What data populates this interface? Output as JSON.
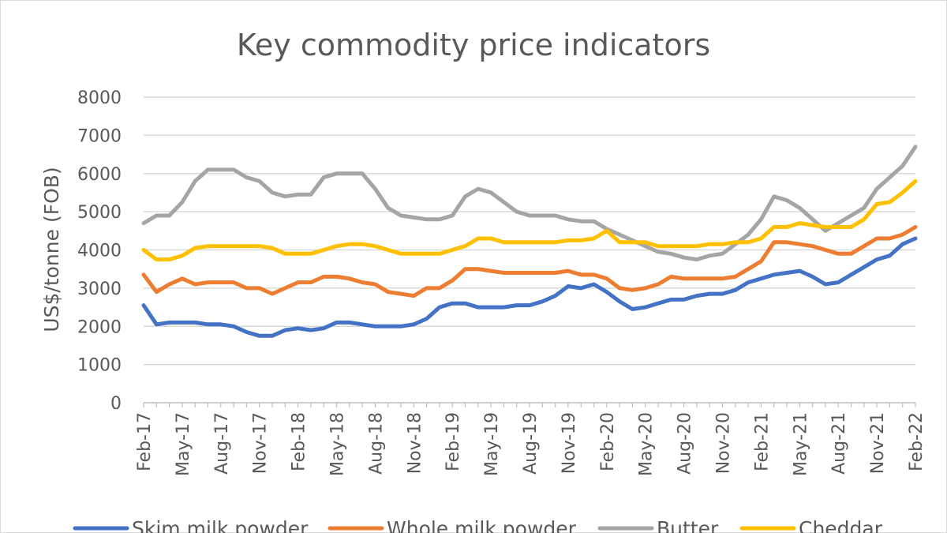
{
  "chart_data": {
    "type": "line",
    "title": "Key commodity price indicators",
    "ylabel": "US$/tonne (FOB)",
    "ylim": [
      0,
      8000
    ],
    "yticks": [
      0,
      1000,
      2000,
      3000,
      4000,
      5000,
      6000,
      7000,
      8000
    ],
    "grid": true,
    "legend_position": "bottom",
    "x": [
      "Feb-17",
      "Mar-17",
      "Apr-17",
      "May-17",
      "Jun-17",
      "Jul-17",
      "Aug-17",
      "Sep-17",
      "Oct-17",
      "Nov-17",
      "Dec-17",
      "Jan-18",
      "Feb-18",
      "Mar-18",
      "Apr-18",
      "May-18",
      "Jun-18",
      "Jul-18",
      "Aug-18",
      "Sep-18",
      "Oct-18",
      "Nov-18",
      "Dec-18",
      "Jan-19",
      "Feb-19",
      "Mar-19",
      "Apr-19",
      "May-19",
      "Jun-19",
      "Jul-19",
      "Aug-19",
      "Sep-19",
      "Oct-19",
      "Nov-19",
      "Dec-19",
      "Jan-20",
      "Feb-20",
      "Mar-20",
      "Apr-20",
      "May-20",
      "Jun-20",
      "Jul-20",
      "Aug-20",
      "Sep-20",
      "Oct-20",
      "Nov-20",
      "Dec-20",
      "Jan-21",
      "Feb-21",
      "Mar-21",
      "Apr-21",
      "May-21",
      "Jun-21",
      "Jul-21",
      "Aug-21",
      "Sep-21",
      "Oct-21",
      "Nov-21",
      "Dec-21",
      "Jan-22",
      "Feb-22"
    ],
    "x_tick_labels": [
      "Feb-17",
      "May-17",
      "Aug-17",
      "Nov-17",
      "Feb-18",
      "May-18",
      "Aug-18",
      "Nov-18",
      "Feb-19",
      "May-19",
      "Aug-19",
      "Nov-19",
      "Feb-20",
      "May-20",
      "Aug-20",
      "Nov-20",
      "Feb-21",
      "May-21",
      "Aug-21",
      "Nov-21",
      "Feb-22"
    ],
    "series": [
      {
        "name": "Skim milk powder",
        "color": "#4472c4",
        "values": [
          2550,
          2050,
          2100,
          2100,
          2100,
          2050,
          2050,
          2000,
          1850,
          1750,
          1750,
          1900,
          1950,
          1900,
          1950,
          2100,
          2100,
          2050,
          2000,
          2000,
          2000,
          2050,
          2200,
          2500,
          2600,
          2600,
          2500,
          2500,
          2500,
          2550,
          2550,
          2650,
          2800,
          3050,
          3000,
          3100,
          2900,
          2650,
          2450,
          2500,
          2600,
          2700,
          2700,
          2800,
          2850,
          2850,
          2950,
          3150,
          3250,
          3350,
          3400,
          3450,
          3300,
          3100,
          3150,
          3350,
          3550,
          3750,
          3850,
          4150,
          4300
        ]
      },
      {
        "name": "Whole milk powder",
        "color": "#ed7d31",
        "values": [
          3350,
          2900,
          3100,
          3250,
          3100,
          3150,
          3150,
          3150,
          3000,
          3000,
          2850,
          3000,
          3150,
          3150,
          3300,
          3300,
          3250,
          3150,
          3100,
          2900,
          2850,
          2800,
          3000,
          3000,
          3200,
          3500,
          3500,
          3450,
          3400,
          3400,
          3400,
          3400,
          3400,
          3450,
          3350,
          3350,
          3250,
          3000,
          2950,
          3000,
          3100,
          3300,
          3250,
          3250,
          3250,
          3250,
          3300,
          3500,
          3700,
          4200,
          4200,
          4150,
          4100,
          4000,
          3900,
          3900,
          4100,
          4300,
          4300,
          4400,
          4600
        ]
      },
      {
        "name": "Butter",
        "color": "#a5a5a5",
        "values": [
          4700,
          4900,
          4900,
          5250,
          5800,
          6100,
          6100,
          6100,
          5900,
          5800,
          5500,
          5400,
          5450,
          5450,
          5900,
          6000,
          6000,
          6000,
          5600,
          5100,
          4900,
          4850,
          4800,
          4800,
          4900,
          5400,
          5600,
          5500,
          5250,
          5000,
          4900,
          4900,
          4900,
          4800,
          4750,
          4750,
          4550,
          4400,
          4250,
          4100,
          3950,
          3900,
          3800,
          3750,
          3850,
          3900,
          4150,
          4400,
          4800,
          5400,
          5300,
          5100,
          4800,
          4500,
          4700,
          4900,
          5100,
          5600,
          5900,
          6200,
          6700
        ]
      },
      {
        "name": "Cheddar",
        "color": "#ffc000",
        "values": [
          4000,
          3750,
          3750,
          3850,
          4050,
          4100,
          4100,
          4100,
          4100,
          4100,
          4050,
          3900,
          3900,
          3900,
          4000,
          4100,
          4150,
          4150,
          4100,
          4000,
          3900,
          3900,
          3900,
          3900,
          4000,
          4100,
          4300,
          4300,
          4200,
          4200,
          4200,
          4200,
          4200,
          4250,
          4250,
          4300,
          4500,
          4200,
          4200,
          4200,
          4100,
          4100,
          4100,
          4100,
          4150,
          4150,
          4200,
          4200,
          4300,
          4600,
          4600,
          4700,
          4650,
          4600,
          4600,
          4600,
          4800,
          5200,
          5250,
          5500,
          5800
        ]
      }
    ]
  }
}
